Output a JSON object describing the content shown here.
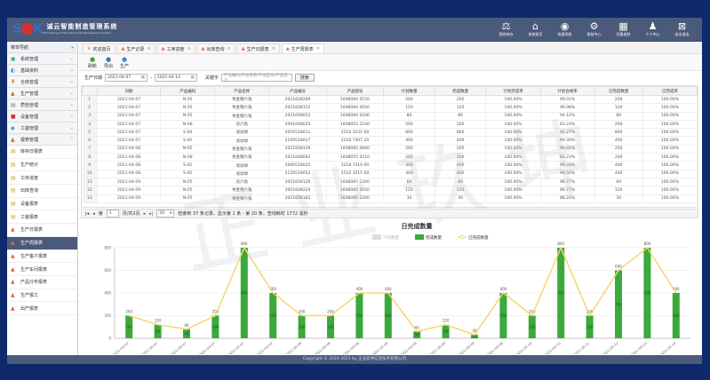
{
  "header": {
    "logo_text": "SOK",
    "title": "诚云智能制造管理系统",
    "subtitle": "SOK Intelligent Manufacturing Management System",
    "nav": [
      {
        "icon": "tasks-icon",
        "label": "我的待办"
      },
      {
        "icon": "home-icon",
        "label": "系统首页"
      },
      {
        "icon": "compass-icon",
        "label": "快速导航"
      },
      {
        "icon": "gear-icon",
        "label": "帮助中心"
      },
      {
        "icon": "grid-icon",
        "label": "切换皮肤"
      },
      {
        "icon": "user-icon",
        "label": "个人中心"
      },
      {
        "icon": "exit-icon",
        "label": "安全退出"
      }
    ]
  },
  "sidebar": {
    "title": "菜单导航",
    "groups": [
      {
        "label": "系统管理"
      },
      {
        "label": "基础资料"
      },
      {
        "label": "仓库管理"
      },
      {
        "label": "生产管理"
      },
      {
        "label": "质检管理"
      },
      {
        "label": "设备管理"
      },
      {
        "label": "工装管理"
      },
      {
        "label": "报表管理",
        "expanded": true
      }
    ],
    "items": [
      {
        "label": "库存日报表"
      },
      {
        "label": "生产统计"
      },
      {
        "label": "工序进度"
      },
      {
        "label": "出库查询"
      },
      {
        "label": "设备报表"
      },
      {
        "label": "工装报表"
      },
      {
        "label": "生产日报表"
      },
      {
        "label": "生产周报表",
        "active": true
      },
      {
        "label": "生产客户报表"
      },
      {
        "label": "生产车间报表"
      },
      {
        "label": "产品分布报表"
      },
      {
        "label": "生产报工"
      },
      {
        "label": "出产报表"
      }
    ]
  },
  "tabs": [
    {
      "label": "欢迎首页"
    },
    {
      "label": "生产记录"
    },
    {
      "label": "工序进度"
    },
    {
      "label": "出库查询"
    },
    {
      "label": "生产日报表"
    },
    {
      "label": "生产周报表",
      "active": true
    }
  ],
  "toolbar": [
    {
      "icon": "refresh-icon",
      "label": "刷新"
    },
    {
      "icon": "export-icon",
      "label": "导出"
    },
    {
      "icon": "produce-icon",
      "label": "生产"
    }
  ],
  "filter": {
    "date_label": "生产日期",
    "date_from": "2021-04-07",
    "date_to": "2021-04-14",
    "keyword_label": "关键字",
    "keyword_placeholder": "产品编码/产品名称/产品型号/产品批次",
    "search": "搜索"
  },
  "table": {
    "columns": [
      "",
      "日期",
      "产品编码",
      "产品名称",
      "产品编号",
      "产品图号",
      "计划数量",
      "完成数量",
      "计划完成率",
      "计划合格率",
      "已完成数量",
      "已完成率"
    ],
    "rows": [
      [
        "1",
        "2021-04-07",
        "N-05",
        "青金钢六角",
        "2021608289",
        "1608084 0150",
        "200",
        "200",
        "100.00%",
        "99.01%",
        "200",
        "100.00%"
      ],
      [
        "2",
        "2021-04-07",
        "N-05",
        "青金钢六角",
        "2021608152",
        "1608084 0050",
        "120",
        "120",
        "100.00%",
        "96.08%",
        "120",
        "100.00%"
      ],
      [
        "3",
        "2021-04-07",
        "N-05",
        "青金钢六角",
        "2021608053",
        "1608084 0200",
        "80",
        "80",
        "100.00%",
        "94.12%",
        "80",
        "100.00%"
      ],
      [
        "4",
        "2021-04-07",
        "N-08",
        "双六角",
        "2091608025",
        "1608055 2140",
        "200",
        "200",
        "100.00%",
        "83.23%",
        "200",
        "100.00%"
      ],
      [
        "5",
        "2021-04-07",
        "S-04",
        "滚动球",
        "2050518011",
        "2518 3101 60",
        "800",
        "800",
        "100.00%",
        "92.27%",
        "800",
        "100.00%"
      ],
      [
        "6",
        "2021-04-07",
        "S-05",
        "滚动球",
        "2100518037",
        "2218 7407 20",
        "400",
        "400",
        "100.00%",
        "99.30%",
        "400",
        "100.00%"
      ],
      [
        "7",
        "2021-04-08",
        "N-05",
        "青金钢六角",
        "2021608339",
        "1608085 0840",
        "200",
        "200",
        "100.00%",
        "99.01%",
        "200",
        "100.00%"
      ],
      [
        "8",
        "2021-04-08",
        "N-08",
        "青金钢六角",
        "2021608062",
        "1608055 0510",
        "200",
        "200",
        "100.00%",
        "83.23%",
        "200",
        "100.00%"
      ],
      [
        "9",
        "2021-04-08",
        "S-05",
        "滚动球",
        "2090518025",
        "2218 7410 90",
        "400",
        "400",
        "100.00%",
        "99.20%",
        "400",
        "100.00%"
      ],
      [
        "10",
        "2021-04-08",
        "S-05",
        "滚动球",
        "2120518052",
        "2518 1015 60",
        "400",
        "400",
        "100.00%",
        "99.50%",
        "400",
        "100.00%"
      ],
      [
        "11",
        "2021-04-09",
        "N-05",
        "双六角",
        "2051608129",
        "1608087 1340",
        "60",
        "60",
        "100.00%",
        "96.77%",
        "60",
        "100.00%"
      ],
      [
        "12",
        "2021-04-09",
        "N-05",
        "青金钢六角",
        "2001608229",
        "1608085 1050",
        "120",
        "120",
        "100.00%",
        "96.77%",
        "120",
        "100.00%"
      ],
      [
        "13",
        "2021-04-09",
        "N-05",
        "青金钢六角",
        "2021608162",
        "1608085 2260",
        "30",
        "30",
        "100.00%",
        "88.24%",
        "30",
        "100.00%"
      ]
    ]
  },
  "pager": {
    "page_label": "第",
    "page": "1",
    "total_label": "页/共2页",
    "page_size": "50",
    "summary": "检索到 37 条记录，显示第 1 条 - 第 20 条，查询耗时 1772 毫秒"
  },
  "watermark": "正业玖坤",
  "chart_data": {
    "type": "bar",
    "title": "日完成数量",
    "ylim": [
      0,
      800
    ],
    "yticks": [
      0,
      200,
      400,
      600,
      800
    ],
    "grid": true,
    "legend_placement": "top-right",
    "categories": [
      "2021-04-07",
      "2021-04-07",
      "2021-04-07",
      "2021-04-07",
      "2021-04-07",
      "2021-04-07",
      "2021-04-08",
      "2021-04-08",
      "2021-04-08",
      "2021-04-08",
      "2021-04-09",
      "2021-04-09",
      "2021-04-09",
      "2021-04-09",
      "2021-04-10",
      "2021-04-10",
      "2021-04-11",
      "2021-04-12",
      "2021-04-13",
      "2021-04-14"
    ],
    "series": [
      {
        "name": "计划数量",
        "type": "bar",
        "hidden": true,
        "color": "#cccccc",
        "values": [
          200,
          120,
          80,
          200,
          800,
          400,
          200,
          200,
          400,
          400,
          60,
          120,
          30,
          400,
          200,
          800,
          200,
          600,
          800,
          400
        ]
      },
      {
        "name": "完成数量",
        "type": "bar",
        "color": "#3aaa3a",
        "values": [
          200,
          120,
          80,
          200,
          800,
          400,
          200,
          200,
          400,
          400,
          60,
          120,
          30,
          400,
          200,
          800,
          200,
          600,
          800,
          400
        ]
      },
      {
        "name": "已完成数量",
        "type": "line",
        "color": "#f5d76e",
        "values": [
          200,
          120,
          80,
          200,
          800,
          400,
          200,
          200,
          400,
          400,
          60,
          120,
          30,
          400,
          200,
          800,
          200,
          600,
          800,
          400
        ]
      }
    ]
  },
  "footer": "Copyright © 2016-2021 by 正业玖坤信息技术有限公司"
}
